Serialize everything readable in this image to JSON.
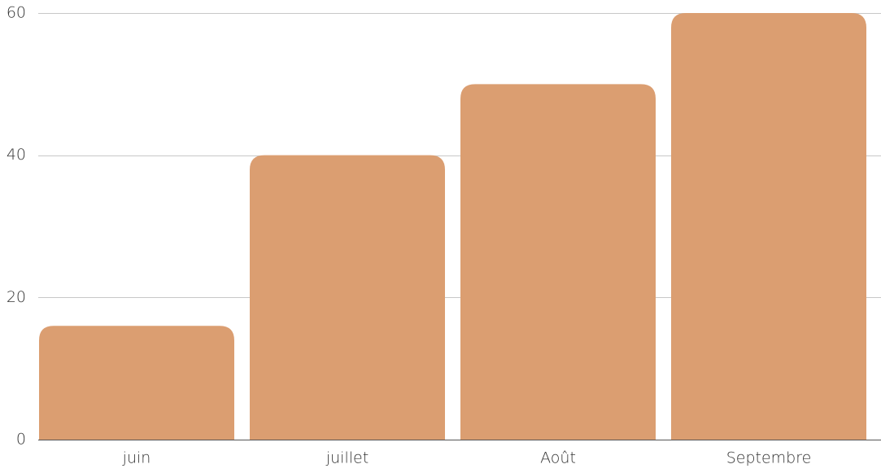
{
  "chart_data": {
    "type": "bar",
    "categories": [
      "juin",
      "juillet",
      "Août",
      "Septembre"
    ],
    "values": [
      16,
      40,
      50,
      60
    ],
    "ylim": [
      0,
      60
    ],
    "yticks": [
      0,
      20,
      40,
      60
    ],
    "grid": true,
    "bar_color": "#db9e71",
    "title": "",
    "xlabel": "",
    "ylabel": ""
  }
}
